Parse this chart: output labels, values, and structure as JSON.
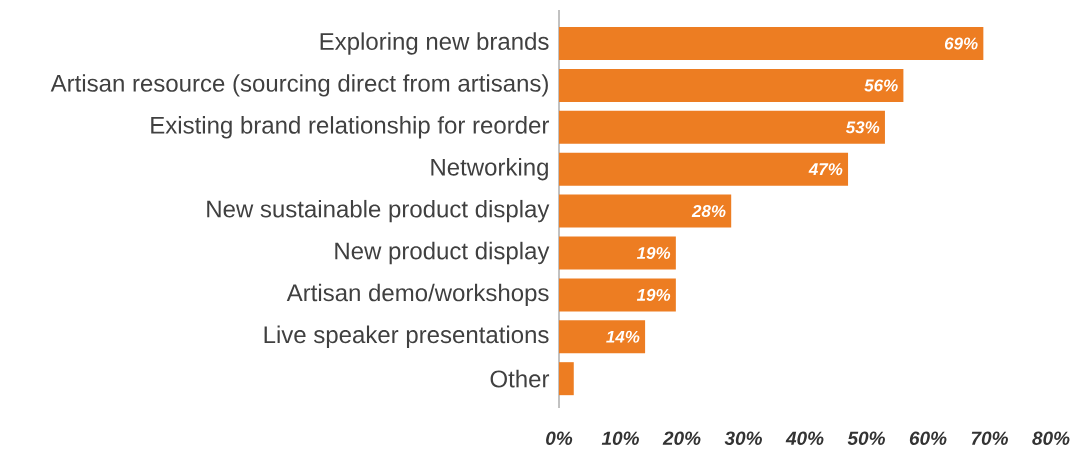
{
  "chart_data": {
    "type": "bar",
    "orientation": "horizontal",
    "categories": [
      "Exploring new brands",
      "Artisan resource (sourcing direct from artisans)",
      "Existing brand relationship for reorder",
      "Networking",
      "New sustainable product display",
      "New product display",
      "Artisan demo/workshops",
      "Live speaker presentations",
      "Other"
    ],
    "values": [
      69,
      56,
      53,
      47,
      28,
      19,
      19,
      14,
      2.4
    ],
    "value_labels": [
      "69%",
      "56%",
      "53%",
      "47%",
      "28%",
      "19%",
      "19%",
      "14%",
      null
    ],
    "color": "#ed7d22",
    "xlim": [
      0,
      80
    ],
    "xticks": [
      {
        "value": 0,
        "label": "0%"
      },
      {
        "value": 10,
        "label": "10%"
      },
      {
        "value": 20,
        "label": "20%"
      },
      {
        "value": 30,
        "label": "30%"
      },
      {
        "value": 40,
        "label": "40%"
      },
      {
        "value": 50,
        "label": "50%"
      },
      {
        "value": 60,
        "label": "60%"
      },
      {
        "value": 70,
        "label": "70%"
      },
      {
        "value": 80,
        "label": "80%"
      }
    ],
    "grid": false
  }
}
